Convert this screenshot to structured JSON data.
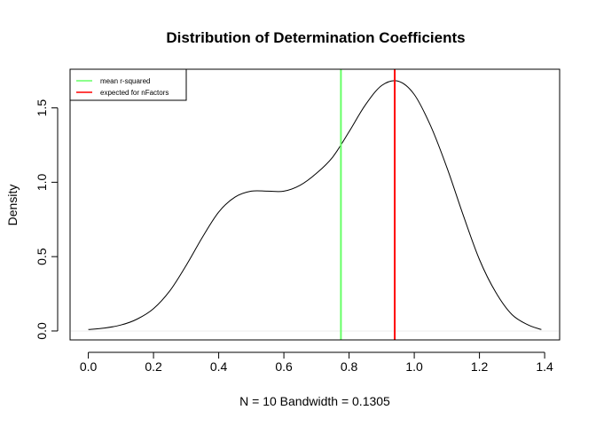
{
  "chart_data": {
    "type": "line",
    "title": "Distribution of Determination Coefficients",
    "xlabel": "N = 10   Bandwidth = 0.1305",
    "ylabel": "Density",
    "xlim": [
      -0.056,
      1.446
    ],
    "ylim": [
      -0.06,
      1.76
    ],
    "x_ticks": [
      0.0,
      0.2,
      0.4,
      0.6,
      0.8,
      1.0,
      1.2,
      1.4
    ],
    "x_tick_labels": [
      "0.0",
      "0.2",
      "0.4",
      "0.6",
      "0.8",
      "1.0",
      "1.2",
      "1.4"
    ],
    "y_ticks": [
      0.0,
      0.5,
      1.0,
      1.5
    ],
    "y_tick_labels": [
      "0.0",
      "0.5",
      "1.0",
      "1.5"
    ],
    "series": [
      {
        "x": [
          0.0,
          0.05,
          0.1,
          0.15,
          0.2,
          0.25,
          0.3,
          0.35,
          0.4,
          0.45,
          0.5,
          0.55,
          0.6,
          0.65,
          0.7,
          0.75,
          0.8,
          0.85,
          0.9,
          0.95,
          1.0,
          1.05,
          1.1,
          1.15,
          1.2,
          1.25,
          1.3,
          1.35,
          1.39
        ],
        "values": [
          0.01,
          0.02,
          0.04,
          0.08,
          0.15,
          0.27,
          0.44,
          0.63,
          0.8,
          0.9,
          0.94,
          0.94,
          0.94,
          0.98,
          1.06,
          1.17,
          1.34,
          1.52,
          1.65,
          1.68,
          1.59,
          1.38,
          1.1,
          0.78,
          0.48,
          0.26,
          0.11,
          0.04,
          0.01
        ],
        "color": "#000000"
      }
    ],
    "vlines": [
      {
        "name": "mean r-squared",
        "x": 0.775,
        "color": "#66ff66"
      },
      {
        "name": "expected for nFactors",
        "x": 0.94,
        "color": "#ff0000"
      }
    ],
    "zero_line_color": "#eeeeee",
    "legend": {
      "position": "top-left",
      "entries": [
        {
          "label": "mean r-squared",
          "color": "#66ff66"
        },
        {
          "label": "expected for nFactors",
          "color": "#ff0000"
        }
      ]
    },
    "grid": false
  }
}
